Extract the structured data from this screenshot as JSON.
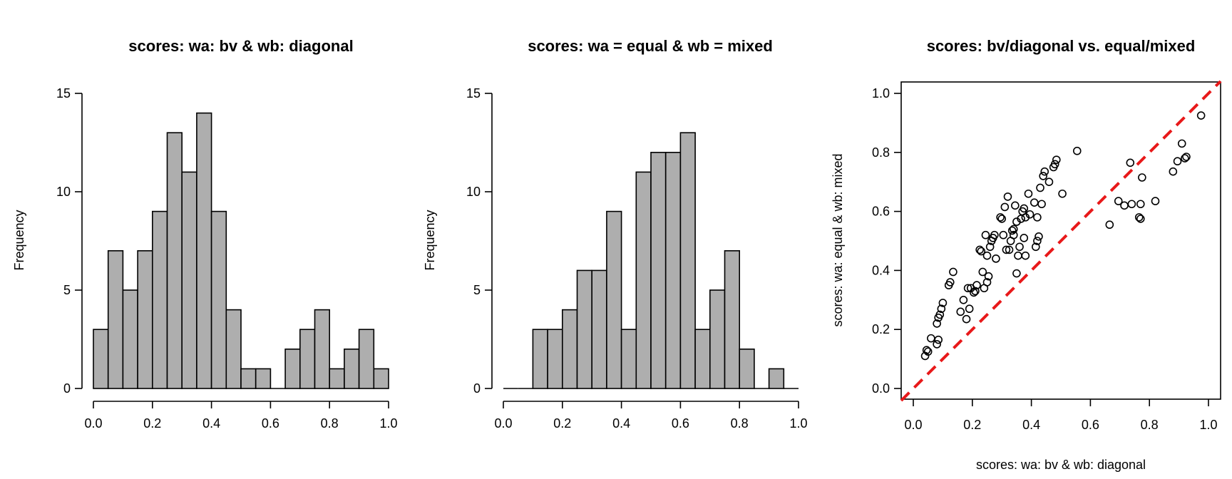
{
  "chart_data": [
    {
      "type": "bar",
      "subtype": "histogram",
      "title": "scores: wa: bv & wb: diagonal",
      "xlabel": "",
      "ylabel": "Frequency",
      "xlim": [
        0,
        1
      ],
      "ylim": [
        0,
        15
      ],
      "bin_width": 0.05,
      "bin_starts": [
        0.0,
        0.05,
        0.1,
        0.15,
        0.2,
        0.25,
        0.3,
        0.35,
        0.4,
        0.45,
        0.5,
        0.55,
        0.6,
        0.65,
        0.7,
        0.75,
        0.8,
        0.85,
        0.9,
        0.95
      ],
      "values": [
        3,
        7,
        5,
        7,
        9,
        13,
        11,
        14,
        9,
        4,
        1,
        1,
        0,
        2,
        3,
        4,
        1,
        2,
        3,
        1
      ],
      "xticks": [
        "0.0",
        "0.2",
        "0.4",
        "0.6",
        "0.8",
        "1.0"
      ],
      "yticks": [
        "0",
        "5",
        "10",
        "15"
      ]
    },
    {
      "type": "bar",
      "subtype": "histogram",
      "title": "scores: wa = equal & wb = mixed",
      "xlabel": "",
      "ylabel": "Frequency",
      "xlim": [
        0,
        1
      ],
      "ylim": [
        0,
        15
      ],
      "bin_width": 0.05,
      "bin_starts": [
        0.0,
        0.05,
        0.1,
        0.15,
        0.2,
        0.25,
        0.3,
        0.35,
        0.4,
        0.45,
        0.5,
        0.55,
        0.6,
        0.65,
        0.7,
        0.75,
        0.8,
        0.85,
        0.9,
        0.95
      ],
      "values": [
        0,
        0,
        3,
        3,
        4,
        6,
        6,
        9,
        3,
        11,
        12,
        12,
        13,
        3,
        5,
        7,
        2,
        0,
        1,
        0
      ],
      "xticks": [
        "0.0",
        "0.2",
        "0.4",
        "0.6",
        "0.8",
        "1.0"
      ],
      "yticks": [
        "0",
        "5",
        "10",
        "15"
      ]
    },
    {
      "type": "scatter",
      "title": "scores: bv/diagonal vs. equal/mixed",
      "xlabel": "scores: wa: bv & wb: diagonal",
      "ylabel": "scores: wa: equal & wb: mixed",
      "xlim": [
        0,
        1
      ],
      "ylim": [
        0,
        1
      ],
      "xticks": [
        "0.0",
        "0.2",
        "0.4",
        "0.6",
        "0.8",
        "1.0"
      ],
      "yticks": [
        "0.0",
        "0.2",
        "0.4",
        "0.6",
        "0.8",
        "1.0"
      ],
      "reference_line": {
        "slope": 1,
        "intercept": 0,
        "style": "dashed",
        "color": "#e8191a"
      },
      "points": [
        [
          0.04,
          0.11
        ],
        [
          0.045,
          0.13
        ],
        [
          0.05,
          0.125
        ],
        [
          0.06,
          0.17
        ],
        [
          0.08,
          0.15
        ],
        [
          0.085,
          0.165
        ],
        [
          0.08,
          0.22
        ],
        [
          0.085,
          0.24
        ],
        [
          0.09,
          0.25
        ],
        [
          0.095,
          0.27
        ],
        [
          0.1,
          0.29
        ],
        [
          0.12,
          0.35
        ],
        [
          0.125,
          0.36
        ],
        [
          0.135,
          0.395
        ],
        [
          0.16,
          0.26
        ],
        [
          0.17,
          0.3
        ],
        [
          0.18,
          0.235
        ],
        [
          0.185,
          0.34
        ],
        [
          0.19,
          0.27
        ],
        [
          0.195,
          0.34
        ],
        [
          0.205,
          0.325
        ],
        [
          0.21,
          0.33
        ],
        [
          0.215,
          0.35
        ],
        [
          0.225,
          0.47
        ],
        [
          0.23,
          0.465
        ],
        [
          0.235,
          0.395
        ],
        [
          0.24,
          0.34
        ],
        [
          0.245,
          0.52
        ],
        [
          0.25,
          0.36
        ],
        [
          0.255,
          0.38
        ],
        [
          0.25,
          0.45
        ],
        [
          0.26,
          0.48
        ],
        [
          0.265,
          0.5
        ],
        [
          0.27,
          0.51
        ],
        [
          0.275,
          0.52
        ],
        [
          0.28,
          0.44
        ],
        [
          0.295,
          0.58
        ],
        [
          0.3,
          0.575
        ],
        [
          0.305,
          0.52
        ],
        [
          0.31,
          0.615
        ],
        [
          0.315,
          0.47
        ],
        [
          0.32,
          0.65
        ],
        [
          0.325,
          0.47
        ],
        [
          0.33,
          0.5
        ],
        [
          0.335,
          0.535
        ],
        [
          0.34,
          0.54
        ],
        [
          0.34,
          0.52
        ],
        [
          0.345,
          0.62
        ],
        [
          0.35,
          0.565
        ],
        [
          0.35,
          0.39
        ],
        [
          0.355,
          0.45
        ],
        [
          0.36,
          0.48
        ],
        [
          0.365,
          0.575
        ],
        [
          0.37,
          0.6
        ],
        [
          0.375,
          0.61
        ],
        [
          0.375,
          0.51
        ],
        [
          0.38,
          0.45
        ],
        [
          0.38,
          0.58
        ],
        [
          0.39,
          0.66
        ],
        [
          0.395,
          0.59
        ],
        [
          0.41,
          0.63
        ],
        [
          0.415,
          0.48
        ],
        [
          0.42,
          0.5
        ],
        [
          0.42,
          0.58
        ],
        [
          0.425,
          0.515
        ],
        [
          0.43,
          0.68
        ],
        [
          0.435,
          0.625
        ],
        [
          0.44,
          0.72
        ],
        [
          0.445,
          0.735
        ],
        [
          0.46,
          0.7
        ],
        [
          0.475,
          0.75
        ],
        [
          0.48,
          0.76
        ],
        [
          0.485,
          0.775
        ],
        [
          0.505,
          0.66
        ],
        [
          0.555,
          0.805
        ],
        [
          0.665,
          0.555
        ],
        [
          0.695,
          0.635
        ],
        [
          0.715,
          0.62
        ],
        [
          0.735,
          0.765
        ],
        [
          0.74,
          0.625
        ],
        [
          0.765,
          0.58
        ],
        [
          0.77,
          0.575
        ],
        [
          0.77,
          0.625
        ],
        [
          0.775,
          0.715
        ],
        [
          0.82,
          0.635
        ],
        [
          0.88,
          0.735
        ],
        [
          0.895,
          0.77
        ],
        [
          0.91,
          0.83
        ],
        [
          0.92,
          0.78
        ],
        [
          0.925,
          0.785
        ],
        [
          0.975,
          0.925
        ]
      ]
    }
  ]
}
